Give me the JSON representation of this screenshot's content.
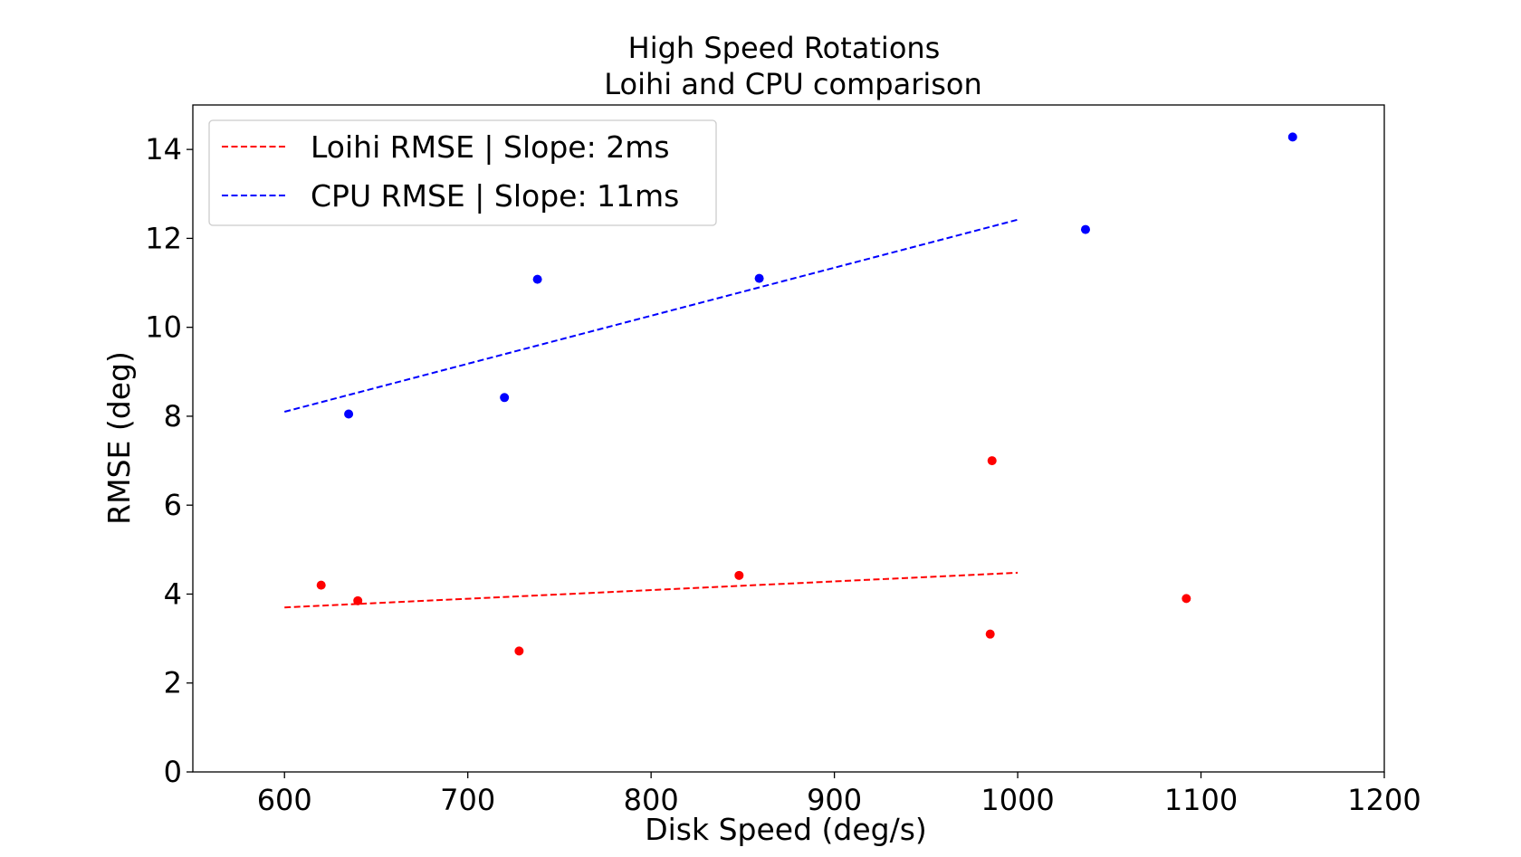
{
  "chart_data": {
    "type": "scatter",
    "title": "High Speed Rotations",
    "subtitle": "Loihi and CPU comparison",
    "xlabel": "Disk Speed (deg/s)",
    "ylabel": "RMSE (deg)",
    "xlim": [
      550,
      1200
    ],
    "ylim": [
      0,
      15
    ],
    "xticks": [
      600,
      700,
      800,
      900,
      1000,
      1100,
      1200
    ],
    "yticks": [
      0,
      2,
      4,
      6,
      8,
      10,
      12,
      14
    ],
    "grid": false,
    "legend_position": "upper-left",
    "series": [
      {
        "name": "Loihi RMSE | Slope: 2ms",
        "color": "#ff0000",
        "points": [
          {
            "x": 620,
            "y": 4.2
          },
          {
            "x": 640,
            "y": 3.85
          },
          {
            "x": 728,
            "y": 2.72
          },
          {
            "x": 848,
            "y": 4.42
          },
          {
            "x": 985,
            "y": 3.1
          },
          {
            "x": 986,
            "y": 7.0
          },
          {
            "x": 1092,
            "y": 3.9
          }
        ],
        "fit": {
          "x": [
            600,
            1000
          ],
          "y": [
            3.7,
            4.48
          ]
        }
      },
      {
        "name": "CPU RMSE | Slope: 11ms",
        "color": "#0000ff",
        "points": [
          {
            "x": 635,
            "y": 8.05
          },
          {
            "x": 720,
            "y": 8.42
          },
          {
            "x": 738,
            "y": 11.08
          },
          {
            "x": 859,
            "y": 11.1
          },
          {
            "x": 1037,
            "y": 12.2
          },
          {
            "x": 1150,
            "y": 14.28
          }
        ],
        "fit": {
          "x": [
            600,
            1000
          ],
          "y": [
            8.1,
            12.42
          ]
        }
      }
    ]
  }
}
